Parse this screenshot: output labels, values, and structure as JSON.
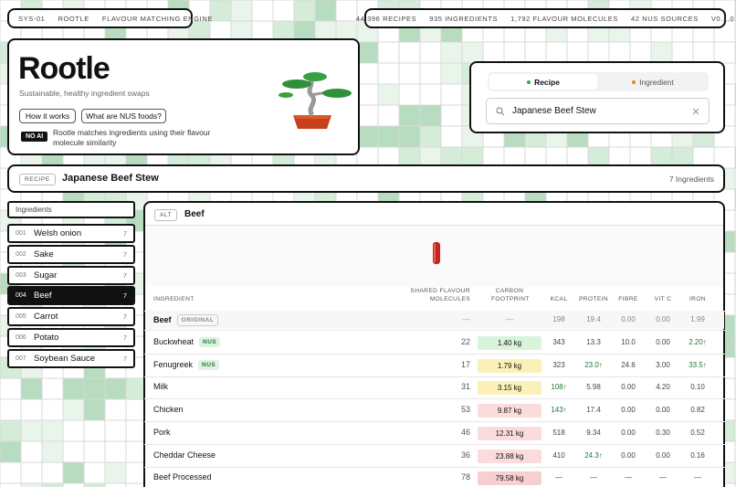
{
  "header": {
    "crumbs": [
      "SYS-01",
      "ROOTLE",
      "FLAVOUR MATCHING ENGINE"
    ],
    "stats": [
      "44,396 RECIPES",
      "935 INGREDIENTS",
      "1,792 FLAVOUR MOLECULES",
      "42 NUS SOURCES",
      "V0.1.0"
    ]
  },
  "hero": {
    "title": "Rootle",
    "tagline": "Sustainable, healthy ingredient swaps",
    "buttons": [
      "How it works",
      "What are NUS foods?"
    ],
    "badge": "NO AI",
    "note": "Rootle matches ingredients using their flavour molecule similarity"
  },
  "search": {
    "tabs": [
      {
        "label": "Recipe",
        "color": "#2fa84f"
      },
      {
        "label": "Ingredient",
        "color": "#e8892a"
      }
    ],
    "query": "Japanese Beef Stew"
  },
  "recipe": {
    "label": "RECIPE",
    "name": "Japanese Beef Stew",
    "count": "7 Ingredients"
  },
  "sidebar": {
    "heading": "Ingredients",
    "active": 3,
    "items": [
      {
        "num": "001",
        "name": "Welsh onion",
        "count": 7
      },
      {
        "num": "002",
        "name": "Sake",
        "count": 7
      },
      {
        "num": "003",
        "name": "Sugar",
        "count": 7
      },
      {
        "num": "004",
        "name": "Beef",
        "count": 7
      },
      {
        "num": "005",
        "name": "Carrot",
        "count": 7
      },
      {
        "num": "006",
        "name": "Potato",
        "count": 7
      },
      {
        "num": "007",
        "name": "Soybean Sauce",
        "count": 7
      }
    ]
  },
  "panel": {
    "tag": "ALT",
    "title": "Beef",
    "columns": [
      "INGREDIENT",
      "SHARED FLAVOUR MOLECULES",
      "CARBON FOOTPRINT",
      "KCAL",
      "PROTEIN",
      "FIBRE",
      "VIT C",
      "IRON"
    ],
    "original": {
      "name": "Beef",
      "badge": "ORIGINAL",
      "shared": "—",
      "footprint": "—",
      "nutrients": [
        "198",
        "19.4",
        "0.00",
        "0.00",
        "1.99"
      ]
    },
    "rows": [
      {
        "name": "Buckwheat",
        "badge": "NUS",
        "shared": 22,
        "footprint": "1.40 kg",
        "footprint_color": "#d8f5dc",
        "nutrients": [
          "343",
          "13.3",
          "10.0",
          "0.00",
          "2.20↑"
        ]
      },
      {
        "name": "Fenugreek",
        "badge": "NUS",
        "shared": 17,
        "footprint": "1.79 kg",
        "footprint_color": "#fbf0b8",
        "nutrients": [
          "323",
          "23.0↑",
          "24.6",
          "3.00",
          "33.5↑"
        ]
      },
      {
        "name": "Milk",
        "shared": 31,
        "footprint": "3.15 kg",
        "footprint_color": "#fbf0b8",
        "nutrients": [
          "108↑",
          "5.98",
          "0.00",
          "4.20",
          "0.10"
        ]
      },
      {
        "name": "Chicken",
        "shared": 53,
        "footprint": "9.87 kg",
        "footprint_color": "#fbdcdc",
        "nutrients": [
          "143↑",
          "17.4",
          "0.00",
          "0.00",
          "0.82"
        ]
      },
      {
        "name": "Pork",
        "shared": 46,
        "footprint": "12.31 kg",
        "footprint_color": "#fbdcdc",
        "nutrients": [
          "518",
          "9.34",
          "0.00",
          "0.30",
          "0.52"
        ]
      },
      {
        "name": "Cheddar Cheese",
        "shared": 36,
        "footprint": "23.88 kg",
        "footprint_color": "#fbdcdc",
        "nutrients": [
          "410",
          "24.3↑",
          "0.00",
          "0.00",
          "0.16"
        ]
      },
      {
        "name": "Beef Processed",
        "shared": 78,
        "footprint": "79.58 kg",
        "footprint_color": "#f8cfcf",
        "nutrients": [
          "—",
          "—",
          "—",
          "—",
          "—"
        ]
      }
    ]
  }
}
